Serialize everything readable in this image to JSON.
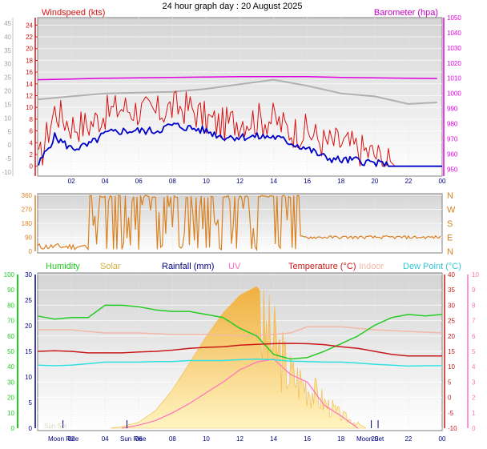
{
  "title": "24 hour graph day : 20 August 2025",
  "colors": {
    "windspeed": "#d81010",
    "windavg": "#0000c8",
    "barometer": "#e000e0",
    "barometer_label": "#c000c0",
    "winddir": "#d98020",
    "humidity": "#22cc22",
    "solar": "#f2b84a",
    "rainfall": "#000080",
    "uv": "#ff70c0",
    "temperature": "#c81818",
    "indoor": "#f4b8a8",
    "dewpoint": "#30e0e0",
    "gray": "#b0b0b0"
  },
  "chart_data": [
    {
      "type": "line",
      "panel": "wind",
      "title": "Windspeed (kts)",
      "right_title": "Barometer (hpa)",
      "x_ticks": [
        "02",
        "04",
        "06",
        "08",
        "10",
        "12",
        "14",
        "16",
        "18",
        "20",
        "22",
        "00"
      ],
      "y_left_outer_ticks": [
        "-10",
        "-5",
        "0",
        "5",
        "10",
        "15",
        "20",
        "25",
        "30",
        "35",
        "40",
        "45"
      ],
      "y_left_ticks": [
        "0",
        "2",
        "4",
        "6",
        "8",
        "10",
        "12",
        "14",
        "16",
        "18",
        "20",
        "22",
        "24"
      ],
      "y_right_ticks": [
        "950",
        "960",
        "970",
        "980",
        "990",
        "1000",
        "1010",
        "1020",
        "1030",
        "1040",
        "1050"
      ],
      "ylim_left": [
        -1,
        25
      ],
      "ylim_right": [
        947,
        1050
      ],
      "series": [
        {
          "name": "Gust",
          "x": [
            0,
            1,
            2,
            3,
            4,
            5,
            6,
            7,
            8,
            9,
            10,
            11,
            12,
            13,
            14,
            15,
            16,
            17,
            18,
            19,
            20,
            21,
            22,
            23,
            24
          ],
          "values": [
            0,
            9.5,
            7,
            7,
            9,
            10,
            9.5,
            9,
            10,
            10,
            8,
            7,
            8,
            8,
            8,
            6,
            6,
            4,
            4,
            3,
            2,
            0,
            0,
            0,
            0
          ]
        },
        {
          "name": "Average",
          "x": [
            0,
            1,
            2,
            3,
            4,
            5,
            6,
            7,
            8,
            9,
            10,
            11,
            12,
            13,
            14,
            15,
            16,
            17,
            18,
            19,
            20,
            21,
            22,
            23,
            24
          ],
          "values": [
            0,
            5,
            3,
            3.5,
            5.5,
            6,
            6,
            6,
            7,
            6.5,
            6,
            5,
            5,
            5,
            5,
            4,
            3,
            1.5,
            1,
            1,
            0.5,
            0,
            0,
            0,
            0
          ]
        },
        {
          "name": "Barometer",
          "x": [
            0,
            2,
            4,
            6,
            8,
            10,
            12,
            14,
            16,
            18,
            20,
            22,
            23.7
          ],
          "values": [
            1009,
            1009.5,
            1010,
            1010.3,
            1010.5,
            1010.8,
            1011,
            1011,
            1011,
            1010.5,
            1010.2,
            1010,
            1009.8
          ]
        },
        {
          "name": "Barometer (previous)",
          "x": [
            0,
            2,
            4,
            6,
            8,
            10,
            12,
            14,
            16,
            18,
            20,
            22,
            23.7
          ],
          "values": [
            996,
            998,
            1000,
            1000.5,
            1001,
            1003,
            1006,
            1009,
            1005,
            1000,
            998,
            993,
            994
          ]
        }
      ]
    },
    {
      "type": "line",
      "panel": "winddir",
      "y_left_ticks": [
        "0",
        "90",
        "180",
        "270",
        "360"
      ],
      "y_right_ticks": [
        "N",
        "E",
        "S",
        "W",
        "N"
      ],
      "ylim": [
        0,
        360
      ],
      "series": [
        {
          "name": "Wind direction",
          "x": [
            0,
            1,
            2,
            3,
            4,
            5,
            6,
            7,
            8,
            9,
            10,
            11,
            12,
            13,
            14,
            15,
            16,
            17,
            18,
            19,
            20,
            21,
            22,
            23,
            24
          ],
          "values": [
            0,
            30,
            25,
            20,
            350,
            350,
            360,
            350,
            350,
            100,
            350,
            30,
            350,
            20,
            340,
            90,
            90,
            95,
            100,
            90,
            95,
            95,
            90,
            90,
            90
          ]
        }
      ]
    },
    {
      "type": "line",
      "panel": "weather",
      "legend": [
        "Humidity",
        "Solar",
        "Rainfall (mm)",
        "UV",
        "Temperature (°C)",
        "Indoor",
        "Dew Point (°C)"
      ],
      "y_hum_ticks": [
        "0",
        "10",
        "20",
        "30",
        "40",
        "50",
        "60",
        "70",
        "80",
        "90",
        "100"
      ],
      "y_left_ticks": [
        "0",
        "5",
        "10",
        "15",
        "20",
        "25",
        "30"
      ],
      "y_right_ticks": [
        "-10",
        "-5",
        "0",
        "5",
        "10",
        "15",
        "20",
        "25",
        "30",
        "35",
        "40"
      ],
      "y_uv_ticks": [
        "0",
        "1",
        "2",
        "3",
        "4",
        "5",
        "6",
        "7",
        "8",
        "9",
        "10"
      ],
      "x_ticks": [
        "02",
        "04",
        "06",
        "08",
        "10",
        "12",
        "14",
        "16",
        "18",
        "20",
        "22",
        "00"
      ],
      "annotations": [
        "Moon Rise",
        "Sun Rise",
        "Moon Set",
        "Sun Set"
      ],
      "series": [
        {
          "name": "Humidity",
          "x": [
            0,
            1,
            2,
            3,
            4,
            5,
            6,
            7,
            8,
            9,
            10,
            11,
            12,
            13,
            14,
            15,
            16,
            17,
            18,
            19,
            20,
            21,
            22,
            23,
            24
          ],
          "values": [
            73,
            71,
            72,
            72,
            80,
            80,
            79,
            77,
            76,
            76,
            74,
            72,
            65,
            60,
            48,
            45,
            46,
            50,
            55,
            60,
            67,
            72,
            74,
            73,
            74
          ]
        },
        {
          "name": "Temperature (°C)",
          "x": [
            0,
            1,
            2,
            3,
            4,
            5,
            6,
            7,
            8,
            9,
            10,
            11,
            12,
            13,
            14,
            15,
            16,
            17,
            18,
            19,
            20,
            21,
            22,
            23,
            24
          ],
          "values": [
            15,
            15.2,
            15,
            14.5,
            14.5,
            14.5,
            14.8,
            15,
            15.4,
            16,
            16.3,
            16.5,
            17,
            17.3,
            17.5,
            17.6,
            17.5,
            17.2,
            16.5,
            16,
            15,
            14,
            13.5,
            13.5,
            13.5
          ]
        },
        {
          "name": "Indoor",
          "x": [
            0,
            2,
            4,
            6,
            8,
            10,
            12,
            14,
            15,
            16,
            18,
            20,
            22,
            24
          ],
          "values": [
            22,
            22,
            21,
            21,
            20.5,
            20.5,
            20,
            20.5,
            21,
            23,
            23,
            22,
            21.5,
            21
          ]
        },
        {
          "name": "Dew Point (°C)",
          "x": [
            0,
            1,
            2,
            3,
            4,
            5,
            6,
            7,
            8,
            9,
            10,
            11,
            12,
            13,
            14,
            15,
            16,
            17,
            18,
            19,
            20,
            21,
            22,
            23,
            24
          ],
          "values": [
            10.5,
            10.3,
            10.5,
            11,
            11.5,
            11.5,
            11.5,
            11.7,
            11.7,
            12,
            12,
            12,
            12.3,
            12.5,
            12.3,
            11.8,
            11.7,
            11.5,
            11.5,
            11.2,
            10.8,
            10.5,
            10.2,
            10.3,
            10.3
          ]
        },
        {
          "name": "Solar",
          "x": [
            4.3,
            5,
            6,
            7,
            8,
            9,
            10,
            11,
            12,
            13,
            14,
            15,
            16,
            17,
            18,
            19,
            19.5
          ],
          "values": [
            0,
            5,
            20,
            60,
            130,
            220,
            310,
            390,
            450,
            480,
            400,
            250,
            200,
            120,
            60,
            20,
            0
          ]
        },
        {
          "name": "UV",
          "x": [
            5,
            6,
            7,
            8,
            9,
            10,
            11,
            12,
            13,
            14,
            15,
            16,
            17,
            18,
            19
          ],
          "values": [
            0,
            0.2,
            0.5,
            1,
            1.6,
            2.3,
            3,
            3.8,
            4.3,
            4.5,
            3.5,
            3,
            1.5,
            0.8,
            0
          ]
        }
      ]
    }
  ]
}
